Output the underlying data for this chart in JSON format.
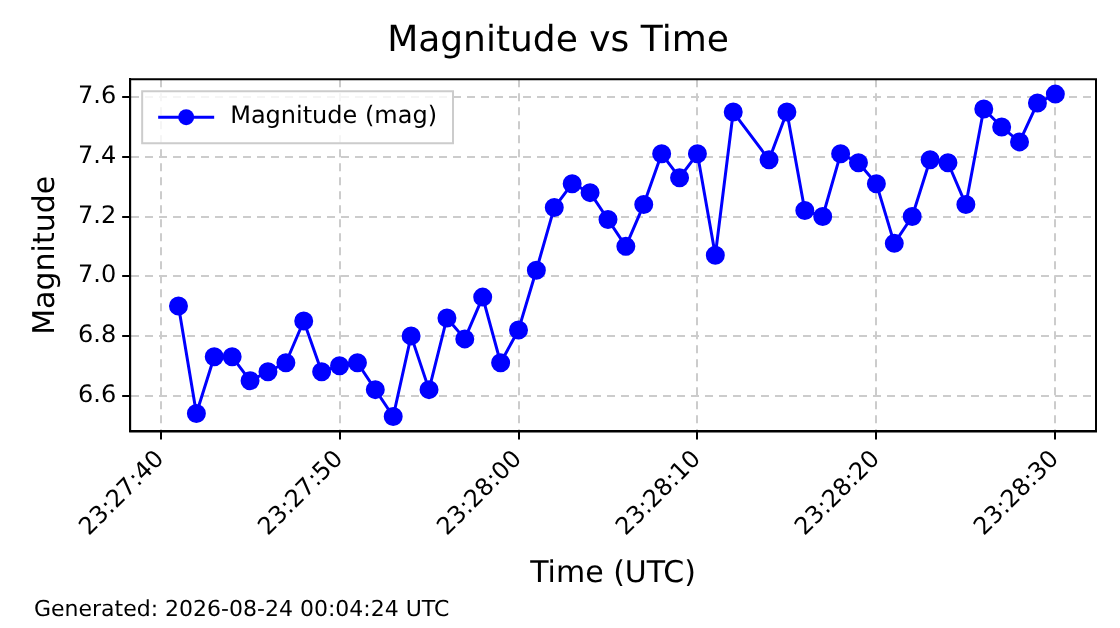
{
  "chart_data": {
    "type": "line",
    "title": "Magnitude vs Time",
    "xlabel": "Time (UTC)",
    "ylabel": "Magnitude",
    "annotations": [
      "Generated: 2026-08-24 00:04:24 UTC"
    ],
    "x": [
      23.461389,
      23.461667,
      23.461944,
      23.462222,
      23.4625,
      23.462778,
      23.463056,
      23.463333,
      23.463611,
      23.463889,
      23.464167,
      23.464444,
      23.464722,
      23.465,
      23.465278,
      23.465556,
      23.465833,
      23.466111,
      23.466389,
      23.466667,
      23.466944,
      23.467222,
      23.4675,
      23.467778,
      23.468056,
      23.468333,
      23.468611,
      23.468889,
      23.469167,
      23.469444,
      23.469722,
      23.47,
      23.470556,
      23.470833,
      23.471111,
      23.471389,
      23.471667,
      23.471944,
      23.472222,
      23.4725,
      23.472778,
      23.473056,
      23.473333,
      23.473611,
      23.473889,
      23.474167,
      23.474444,
      23.474722,
      23.475
    ],
    "series": [
      {
        "name": "Magnitude (mag)",
        "color": "#0000ff",
        "values": [
          6.9,
          6.54,
          6.73,
          6.73,
          6.65,
          6.68,
          6.71,
          6.85,
          6.68,
          6.7,
          6.71,
          6.62,
          6.53,
          6.8,
          6.62,
          6.86,
          6.79,
          6.93,
          6.71,
          6.82,
          7.02,
          7.23,
          7.31,
          7.28,
          7.19,
          7.1,
          7.24,
          7.41,
          7.33,
          7.41,
          7.07,
          7.55,
          7.39,
          7.55,
          7.22,
          7.2,
          7.41,
          7.38,
          7.31,
          7.11,
          7.2,
          7.39,
          7.38,
          7.24,
          7.56,
          7.5,
          7.45,
          7.58,
          7.61
        ]
      }
    ],
    "xlim": [
      23.460639,
      23.475631
    ],
    "ylim": [
      6.48,
      7.66
    ],
    "xticks": [
      {
        "value": 23.461111,
        "label": "23:27:40"
      },
      {
        "value": 23.463889,
        "label": "23:27:50"
      },
      {
        "value": 23.466667,
        "label": "23:28:00"
      },
      {
        "value": 23.469444,
        "label": "23:28:10"
      },
      {
        "value": 23.472222,
        "label": "23:28:20"
      },
      {
        "value": 23.475,
        "label": "23:28:30"
      }
    ],
    "yticks": [
      {
        "value": 6.6,
        "label": "6.6"
      },
      {
        "value": 6.8,
        "label": "6.8"
      },
      {
        "value": 7.0,
        "label": "7.0"
      },
      {
        "value": 7.2,
        "label": "7.2"
      },
      {
        "value": 7.4,
        "label": "7.4"
      },
      {
        "value": 7.6,
        "label": "7.6"
      }
    ],
    "grid": true,
    "legend": "top left",
    "marker": "circle",
    "line_style": "solid"
  }
}
